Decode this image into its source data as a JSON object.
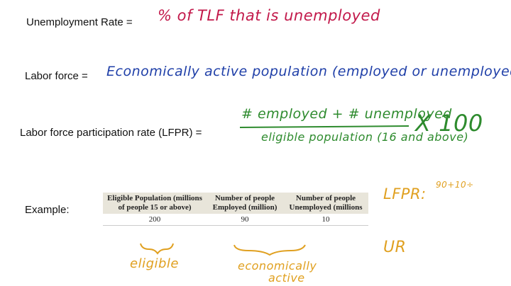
{
  "definitions": [
    {
      "label": "Unemployment Rate =",
      "note": "% of TLF that is unemployed"
    },
    {
      "label": "Labor force =",
      "note": "Economically active population (employed or unemployed)"
    },
    {
      "label": "Labor force participation rate (LFPR) =",
      "numerator": "# employed + # unemployed",
      "denominator": "eligible population (16 and above)",
      "multiplier": "X 100"
    }
  ],
  "example": {
    "label": "Example:",
    "table": {
      "headers": [
        "Eligible Population (millions of people 15 or above)",
        "Number of people Employed (million)",
        "Number of people Unemployed (millions"
      ],
      "rows": [
        [
          200,
          90,
          10
        ]
      ]
    },
    "notes": {
      "lfpr": "LFPR:",
      "lfpr_calc": "90+10÷",
      "ur": "UR",
      "eligible": "eligible",
      "active_1": "economically",
      "active_2": "active"
    }
  }
}
